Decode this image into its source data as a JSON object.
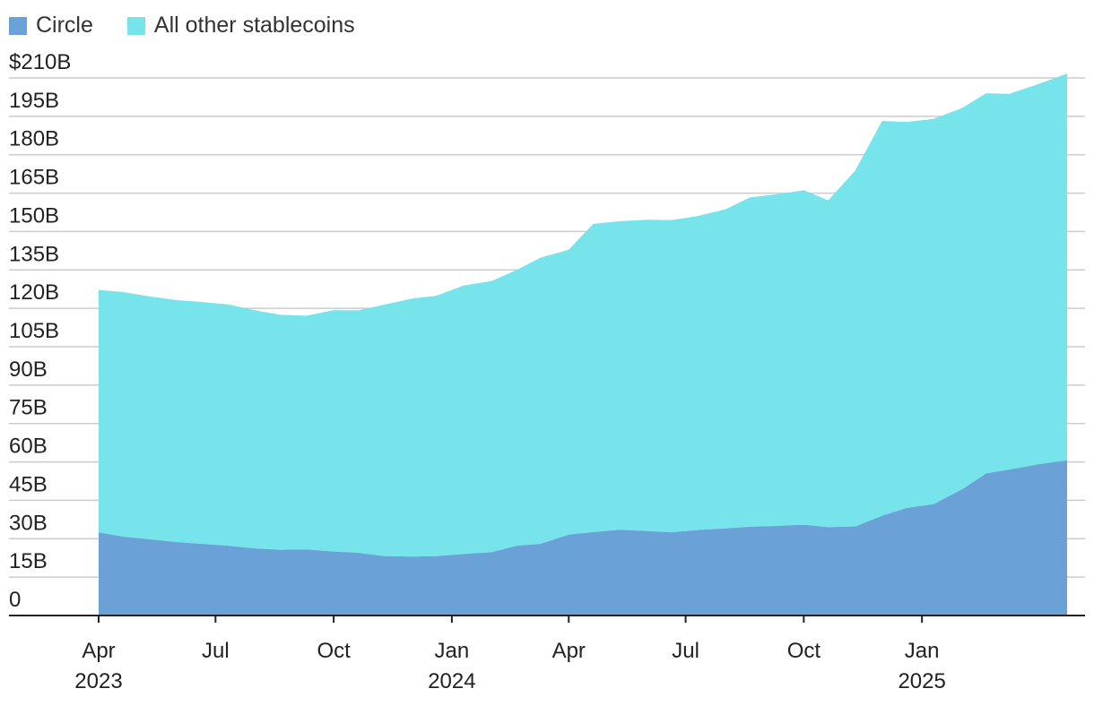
{
  "legend": {
    "circle_label": "Circle",
    "other_label": "All other stablecoins"
  },
  "colors": {
    "circle": "#6aa2d8",
    "other": "#77e4ec",
    "gridline": "#cccccc",
    "axis": "#222222"
  },
  "chart_data": {
    "type": "area",
    "stacked": true,
    "ylim": [
      0,
      210
    ],
    "yticks": [
      0,
      15,
      30,
      45,
      60,
      75,
      90,
      105,
      120,
      135,
      150,
      165,
      180,
      195,
      210
    ],
    "ytick_labels": [
      "0",
      "15B",
      "30B",
      "45B",
      "60B",
      "75B",
      "90B",
      "105B",
      "120B",
      "135B",
      "150B",
      "165B",
      "180B",
      "195B",
      "$210B"
    ],
    "xlim": [
      "2023-04-01",
      "2025-04-24"
    ],
    "xticks": [
      {
        "date": "2023-04-01",
        "label": "Apr",
        "year": "2023"
      },
      {
        "date": "2023-07-01",
        "label": "Jul",
        "year": ""
      },
      {
        "date": "2023-10-01",
        "label": "Oct",
        "year": ""
      },
      {
        "date": "2024-01-01",
        "label": "Jan",
        "year": "2024"
      },
      {
        "date": "2024-04-01",
        "label": "Apr",
        "year": ""
      },
      {
        "date": "2024-07-01",
        "label": "Jul",
        "year": ""
      },
      {
        "date": "2024-10-01",
        "label": "Oct",
        "year": ""
      },
      {
        "date": "2025-01-01",
        "label": "Jan",
        "year": "2025"
      }
    ],
    "grid": true,
    "legend_position": "top-left",
    "series": [
      {
        "name": "Circle",
        "key": "circle",
        "dates": [
          "2023-04-01",
          "2023-04-20",
          "2023-05-10",
          "2023-06-01",
          "2023-06-20",
          "2023-07-10",
          "2023-08-01",
          "2023-08-20",
          "2023-09-10",
          "2023-10-01",
          "2023-10-20",
          "2023-11-10",
          "2023-12-01",
          "2023-12-20",
          "2024-01-10",
          "2024-02-01",
          "2024-02-20",
          "2024-03-10",
          "2024-04-01",
          "2024-04-20",
          "2024-05-10",
          "2024-06-01",
          "2024-06-20",
          "2024-07-10",
          "2024-08-01",
          "2024-08-20",
          "2024-09-10",
          "2024-10-01",
          "2024-10-20",
          "2024-11-10",
          "2024-12-01",
          "2024-12-20",
          "2025-01-10",
          "2025-02-01",
          "2025-02-20",
          "2025-03-10",
          "2025-04-01",
          "2025-04-24"
        ],
        "values": [
          32.5,
          30.8,
          29.8,
          28.7,
          28.0,
          27.3,
          26.2,
          25.7,
          25.8,
          25.0,
          24.5,
          23.2,
          23.0,
          23.2,
          24.0,
          24.7,
          27.2,
          28.0,
          31.6,
          32.6,
          33.5,
          33.0,
          32.5,
          33.4,
          34.0,
          34.7,
          35.0,
          35.5,
          34.5,
          34.8,
          39.0,
          42.0,
          43.5,
          49.2,
          55.5,
          57.0,
          59.0,
          60.6
        ]
      },
      {
        "name": "All other stablecoins",
        "key": "other",
        "dates": [
          "2023-04-01",
          "2023-04-20",
          "2023-05-10",
          "2023-06-01",
          "2023-06-20",
          "2023-07-10",
          "2023-08-01",
          "2023-08-20",
          "2023-09-10",
          "2023-10-01",
          "2023-10-20",
          "2023-11-10",
          "2023-12-01",
          "2023-12-20",
          "2024-01-10",
          "2024-02-01",
          "2024-02-20",
          "2024-03-10",
          "2024-04-01",
          "2024-04-20",
          "2024-05-10",
          "2024-06-01",
          "2024-06-20",
          "2024-07-10",
          "2024-08-01",
          "2024-08-20",
          "2024-09-10",
          "2024-10-01",
          "2024-10-20",
          "2024-11-10",
          "2024-12-01",
          "2024-12-20",
          "2025-01-10",
          "2025-02-01",
          "2025-02-20",
          "2025-03-10",
          "2025-04-01",
          "2025-04-24"
        ],
        "values": [
          94.7,
          95.6,
          94.9,
          94.5,
          94.5,
          94.3,
          93.0,
          91.8,
          91.3,
          94.3,
          94.7,
          98.3,
          100.8,
          101.7,
          104.9,
          106.0,
          107.7,
          111.8,
          111.3,
          120.4,
          120.5,
          121.6,
          122.0,
          122.6,
          124.7,
          128.6,
          129.6,
          130.6,
          127.7,
          139.0,
          154.2,
          150.8,
          150.5,
          149.0,
          148.5,
          146.8,
          148.5,
          151.1
        ]
      }
    ]
  }
}
